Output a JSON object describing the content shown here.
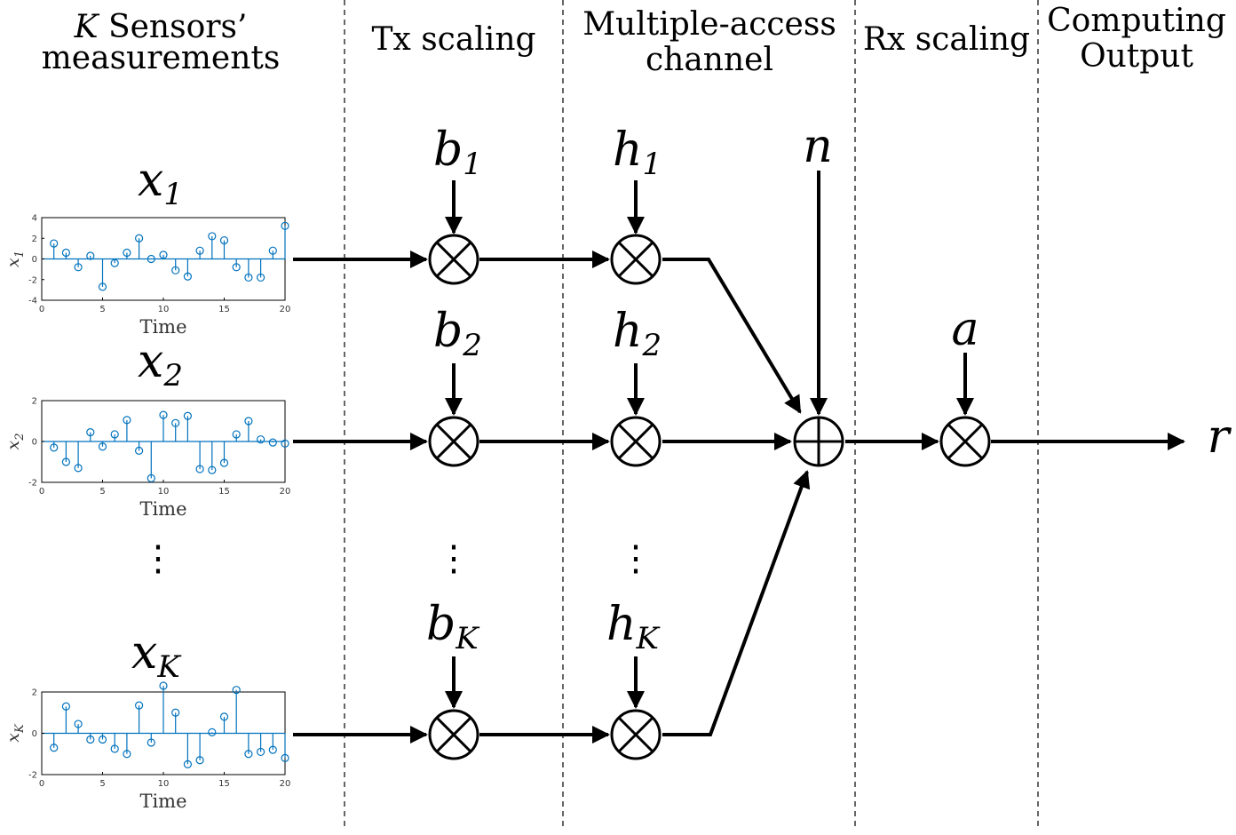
{
  "headers": {
    "sensors_line1": "Sensors’",
    "sensors_k": "K",
    "sensors_line2": "measurements",
    "tx": "Tx scaling",
    "mac_line1": "Multiple-access",
    "mac_line2": "channel",
    "rx": "Rx scaling",
    "out_line1": "Computing",
    "out_line2": "Output"
  },
  "symbols": {
    "x": "x",
    "b": "b",
    "h": "h",
    "n": "n",
    "a": "a",
    "r": "r",
    "sub1": "1",
    "sub2": "2",
    "subK": "K",
    "vdots": "⋮"
  },
  "plots": [
    {
      "ylabel_base": "x",
      "ylabel_sub": "1",
      "xlabel": "Time",
      "yticks": [
        "4",
        "2",
        "0",
        "-2",
        "-4"
      ],
      "xticks": [
        "0",
        "5",
        "10",
        "15",
        "20"
      ],
      "ylim": [
        -4,
        4
      ],
      "values": [
        1.5,
        0.6,
        -0.8,
        0.3,
        -2.7,
        -0.4,
        0.6,
        2.0,
        0.0,
        0.4,
        -1.1,
        -1.7,
        0.8,
        2.2,
        1.8,
        -0.8,
        -1.8,
        -1.8,
        0.8,
        3.2
      ]
    },
    {
      "ylabel_base": "x",
      "ylabel_sub": "2",
      "xlabel": "Time",
      "yticks": [
        "2",
        "0",
        "-2"
      ],
      "xticks": [
        "0",
        "5",
        "10",
        "15",
        "20"
      ],
      "ylim": [
        -2,
        2
      ],
      "values": [
        -0.3,
        -1.0,
        -1.3,
        0.45,
        -0.25,
        0.35,
        1.05,
        -0.45,
        -1.8,
        1.3,
        0.9,
        1.25,
        -1.35,
        -1.4,
        -1.05,
        0.35,
        1.0,
        0.1,
        -0.05,
        -0.1
      ]
    },
    {
      "ylabel_base": "x",
      "ylabel_sub": "K",
      "xlabel": "Time",
      "yticks": [
        "2",
        "0",
        "-2"
      ],
      "xticks": [
        "0",
        "5",
        "10",
        "15",
        "20"
      ],
      "ylim": [
        -2,
        2
      ],
      "values": [
        -0.7,
        1.3,
        0.45,
        -0.3,
        -0.3,
        -0.75,
        -1.0,
        1.35,
        -0.45,
        2.3,
        1.0,
        -1.5,
        -1.3,
        0.05,
        0.8,
        2.1,
        -1.0,
        -0.9,
        -0.8,
        -1.2
      ]
    }
  ]
}
